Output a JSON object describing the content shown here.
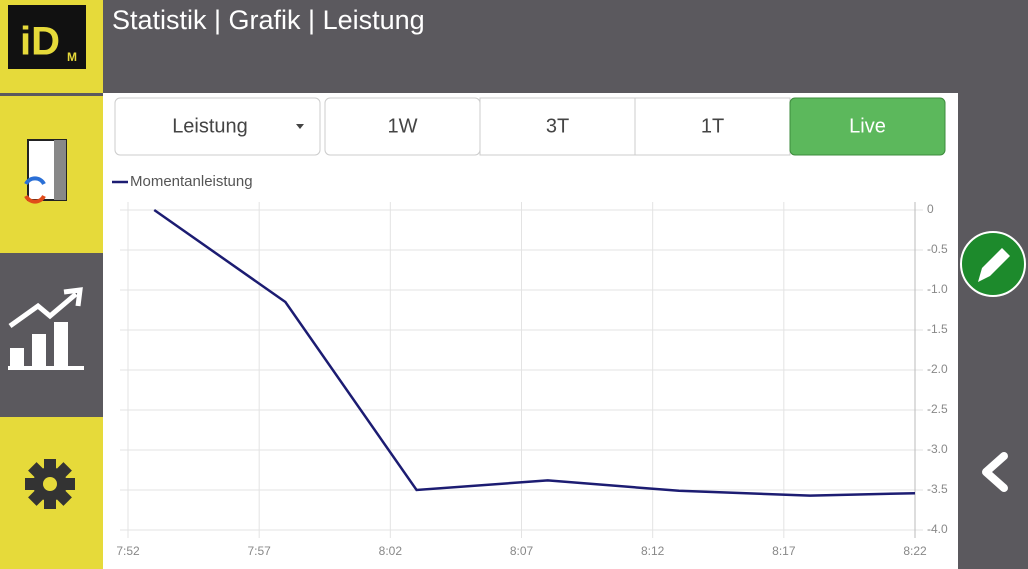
{
  "header": {
    "title": "Statistik | Grafik | Leistung"
  },
  "logo": {
    "text": "iD",
    "sub": "M"
  },
  "controls": {
    "dropdown": "Leistung",
    "ranges": [
      "1W",
      "3T",
      "1T",
      "Live"
    ],
    "active": "Live"
  },
  "chart_data": {
    "type": "line",
    "x": [
      473,
      478,
      483,
      488,
      493,
      498,
      502
    ],
    "series": [
      {
        "name": "Momentanleistung",
        "color": "#1c1c72",
        "values": [
          0,
          -1.15,
          -3.5,
          -3.38,
          -3.51,
          -3.57,
          -3.54
        ]
      }
    ],
    "xlim": [
      472,
      502
    ],
    "xticks": [
      {
        "value": 472,
        "label": "7:52"
      },
      {
        "value": 477,
        "label": "7:57"
      },
      {
        "value": 482,
        "label": "8:02"
      },
      {
        "value": 487,
        "label": "8:07"
      },
      {
        "value": 492,
        "label": "8:12"
      },
      {
        "value": 497,
        "label": "8:17"
      },
      {
        "value": 502,
        "label": "8:22"
      }
    ],
    "ylim": [
      -4,
      0
    ],
    "yticks": [
      0,
      -0.5,
      {
        "value": -1,
        "label": "-1.0"
      },
      -1.5,
      {
        "value": -2,
        "label": "-2.0"
      },
      -2.5,
      {
        "value": -3,
        "label": "-3.0"
      },
      -3.5,
      {
        "value": -4,
        "label": "-4.0"
      }
    ],
    "y_axis_side": "right",
    "grid": true
  }
}
